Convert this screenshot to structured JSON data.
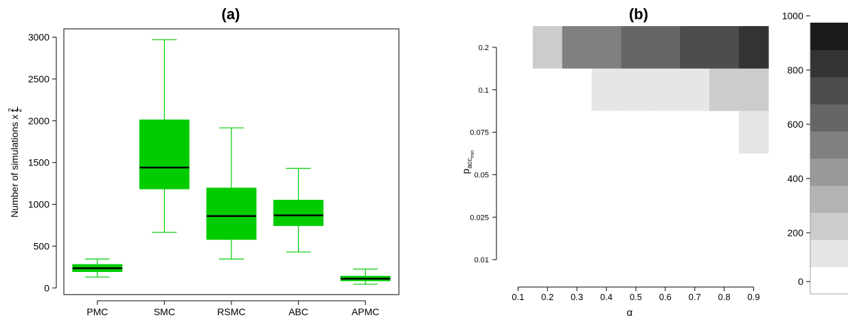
{
  "chart_data": [
    {
      "type": "box",
      "title": "(a)",
      "ylabel": "Number of simulations x L",
      "ylabel_sup": "2",
      "ylabel_sub": "2",
      "ylim": [
        -80,
        3100
      ],
      "yticks": [
        0,
        500,
        1000,
        1500,
        2000,
        2500,
        3000
      ],
      "categories": [
        "PMC",
        "SMC",
        "RSMC",
        "ABC",
        "APMC"
      ],
      "boxes": [
        {
          "min": 130,
          "q1": 195,
          "median": 235,
          "q3": 280,
          "max": 345
        },
        {
          "min": 665,
          "q1": 1185,
          "median": 1440,
          "q3": 2010,
          "max": 2970
        },
        {
          "min": 345,
          "q1": 580,
          "median": 860,
          "q3": 1195,
          "max": 1915
        },
        {
          "min": 430,
          "q1": 745,
          "median": 868,
          "q3": 1050,
          "max": 1430
        },
        {
          "min": 45,
          "q1": 85,
          "median": 110,
          "q3": 140,
          "max": 225
        }
      ],
      "box_color": "#00cc00",
      "median_color": "#000000"
    },
    {
      "type": "heatmap",
      "title": "(b)",
      "xlabel": "α",
      "ylabel": "p",
      "ylabel_sub": "acc",
      "ylabel_subsub": "min",
      "x_categories": [
        "0.1",
        "0.2",
        "0.3",
        "0.4",
        "0.5",
        "0.6",
        "0.7",
        "0.8",
        "0.9"
      ],
      "y_categories": [
        "0.2",
        "0.1",
        "0.075",
        "0.05",
        "0.025",
        "0.01"
      ],
      "values": [
        [
          60,
          270,
          540,
          540,
          660,
          660,
          760,
          760,
          880
        ],
        [
          0,
          60,
          60,
          170,
          170,
          170,
          170,
          270,
          270
        ],
        [
          0,
          60,
          60,
          60,
          60,
          60,
          60,
          60,
          170
        ],
        [
          0,
          0,
          0,
          0,
          0,
          0,
          0,
          0,
          60
        ],
        [
          60,
          0,
          0,
          0,
          0,
          0,
          0,
          0,
          0
        ],
        [
          60,
          60,
          60,
          60,
          60,
          60,
          0,
          0,
          0
        ]
      ],
      "colorbar": {
        "levels": [
          0,
          100,
          200,
          300,
          400,
          500,
          600,
          700,
          800,
          900,
          1000
        ],
        "colors": [
          "#ffffff",
          "#e6e6e6",
          "#cccccc",
          "#b3b3b3",
          "#999999",
          "#808080",
          "#666666",
          "#4d4d4d",
          "#333333",
          "#1a1a1a"
        ],
        "ticks": [
          0,
          200,
          400,
          600,
          800,
          1000
        ]
      }
    }
  ]
}
